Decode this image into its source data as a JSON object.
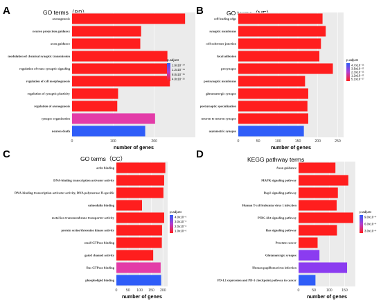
{
  "chart_data": [
    {
      "type": "bar",
      "orientation": "horizontal",
      "letter": "A",
      "title": "GO terms（BP）",
      "xlabel": "number of genes",
      "xticks": [
        "0",
        "100",
        "200"
      ],
      "xlim": [
        0,
        300
      ],
      "categories": [
        "axonogenesis",
        "neuron projection guidance",
        "axon guidance",
        "modulation of chemical synaptic transmission",
        "regulation of trans-synaptic signaling",
        "regulation of cell morphogenesis",
        "regulation of synaptic plasticity",
        "regulation of axonogenesis",
        "synapse organization",
        "neuron death"
      ],
      "values": [
        275,
        168,
        166,
        232,
        232,
        238,
        112,
        110,
        202,
        178
      ],
      "colors": [
        "#ff1e1e",
        "#ff1e1e",
        "#ff1e1e",
        "#ff1e1e",
        "#ff1e1e",
        "#ff1e1e",
        "#ff1e1e",
        "#ff1e1e",
        "#e33ca8",
        "#2f5df8"
      ],
      "legend": {
        "title": "p.adjust",
        "labels": [
          "1.6x10⁻¹⁴",
          "1.2x10⁻¹⁴",
          "8.0x10⁻¹⁵",
          "4.0x10⁻¹⁵"
        ]
      }
    },
    {
      "type": "bar",
      "orientation": "horizontal",
      "letter": "B",
      "title": "GO terms（MF）",
      "xlabel": "number of genes",
      "xticks": [
        "0",
        "50",
        "100",
        "150",
        "200",
        "250"
      ],
      "xlim": [
        0,
        265
      ],
      "categories": [
        "cell leading edge",
        "synaptic membrane",
        "cell-substrate junction",
        "focal adhesion",
        "presynapse",
        "postsynaptic membrane",
        "glutamatergic synapse",
        "postsynaptic specialization",
        "neuron to neuron synapse",
        "asymmetric synapse"
      ],
      "values": [
        212,
        220,
        208,
        204,
        238,
        168,
        176,
        174,
        176,
        165
      ],
      "colors": [
        "#ff1e1e",
        "#ff1e1e",
        "#ff1e1e",
        "#ff1e1e",
        "#ff1e1e",
        "#ff1e1e",
        "#ff1e1e",
        "#ff1e1e",
        "#ff1e1e",
        "#2f5df8"
      ],
      "legend": {
        "title": "p.adjust",
        "labels": [
          "4.7x10⁻¹¹",
          "3.5x10⁻¹¹",
          "2.3x10⁻¹¹",
          "1.2x10⁻¹¹",
          "5.1x10⁻¹⁷"
        ]
      }
    },
    {
      "type": "bar",
      "orientation": "horizontal",
      "letter": "C",
      "title": "GO terms（CC）",
      "xlabel": "number of genes",
      "xticks": [
        "0",
        "50",
        "100",
        "150",
        "200"
      ],
      "xlim": [
        0,
        220
      ],
      "categories": [
        "actin binding",
        "DNA-binding transcription activator activity",
        "DNA-binding transcription activator activity, RNA polymerase II-specific",
        "calmodulin binding",
        "metal ion transmembrane transporter activity",
        "protein serine/threonine kinase activity",
        "small GTPase binding",
        "gated channel activity",
        "Ras GTPase binding",
        "phospholipid binding"
      ],
      "values": [
        210,
        205,
        202,
        110,
        205,
        196,
        195,
        158,
        190,
        192
      ],
      "colors": [
        "#ff1e1e",
        "#ff1e1e",
        "#ff1e1e",
        "#ff1e1e",
        "#ff1e1e",
        "#ff1e1e",
        "#ff1e1e",
        "#ff1e1e",
        "#e33ca8",
        "#2f5df8"
      ],
      "legend": {
        "title": "p.adjust",
        "labels": [
          "4.0x10⁻⁶",
          "3.0x10⁻⁶",
          "2.0x10⁻⁶",
          "1.0x10⁻⁶"
        ]
      }
    },
    {
      "type": "bar",
      "orientation": "horizontal",
      "letter": "D",
      "title": "KEGG pathway terms",
      "xlabel": "number of genes",
      "xticks": [
        "0",
        "50",
        "100",
        "150"
      ],
      "xlim": [
        0,
        185
      ],
      "categories": [
        "Axon guidance",
        "MAPK signaling pathway",
        "Rap1 signaling pathway",
        "Human T-cell leukemia virus 1 infection",
        "PI3K-Akt signaling pathway",
        "Ras signaling pathway",
        "Prostate cancer",
        "Glutamatergic synapse",
        "Human papillomavirus infection",
        "PD-L1 expression and PD-1 checkpoint pathway in cancer"
      ],
      "values": [
        120,
        162,
        128,
        124,
        178,
        125,
        62,
        68,
        158,
        55
      ],
      "colors": [
        "#ff1e1e",
        "#ff1e1e",
        "#ff1e1e",
        "#ff1e1e",
        "#ff1e1e",
        "#ff1e1e",
        "#ff1e1e",
        "#8b3cf0",
        "#8b3cf0",
        "#2f5df8"
      ],
      "legend": {
        "title": "p.adjust",
        "labels": [
          "9.0x10⁻⁴",
          "6.0x10⁻⁴",
          "3.0x10⁻⁴"
        ]
      }
    }
  ]
}
